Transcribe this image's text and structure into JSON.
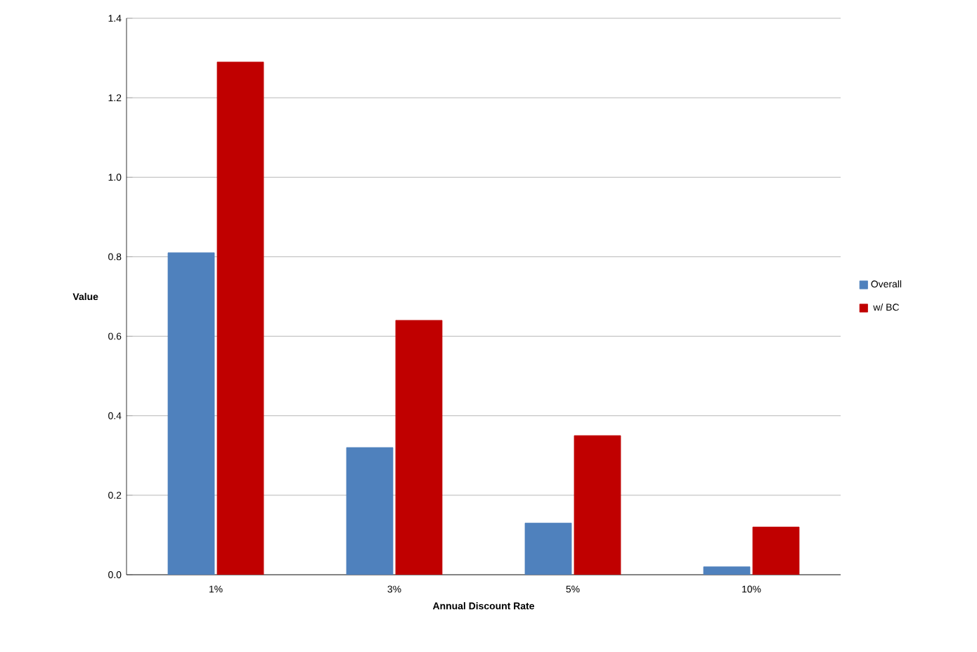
{
  "chart_data": {
    "type": "bar",
    "xlabel": "Annual Discount Rate",
    "ylabel": "Value",
    "categories": [
      "1%",
      "3%",
      "5%",
      "10%"
    ],
    "series": [
      {
        "name": "Overall",
        "color": "#4f81bd",
        "values": [
          0.81,
          0.32,
          0.13,
          0.02
        ]
      },
      {
        "name": "w/ BC",
        "color": "#c00000",
        "values": [
          1.29,
          0.64,
          0.35,
          0.12
        ]
      }
    ],
    "ylim": [
      0,
      1.4
    ],
    "yticks": [
      {
        "value": 0,
        "label": "0.0"
      },
      {
        "value": 0.2,
        "label": "0.2"
      },
      {
        "value": 0.4,
        "label": "0.4"
      },
      {
        "value": 0.6,
        "label": "0.6"
      },
      {
        "value": 0.8,
        "label": "0.8"
      },
      {
        "value": 1.0,
        "label": "1.0"
      },
      {
        "value": 1.2,
        "label": "1.2"
      },
      {
        "value": 1.4,
        "label": "1.4"
      }
    ],
    "grid": "y",
    "legend": "right"
  }
}
